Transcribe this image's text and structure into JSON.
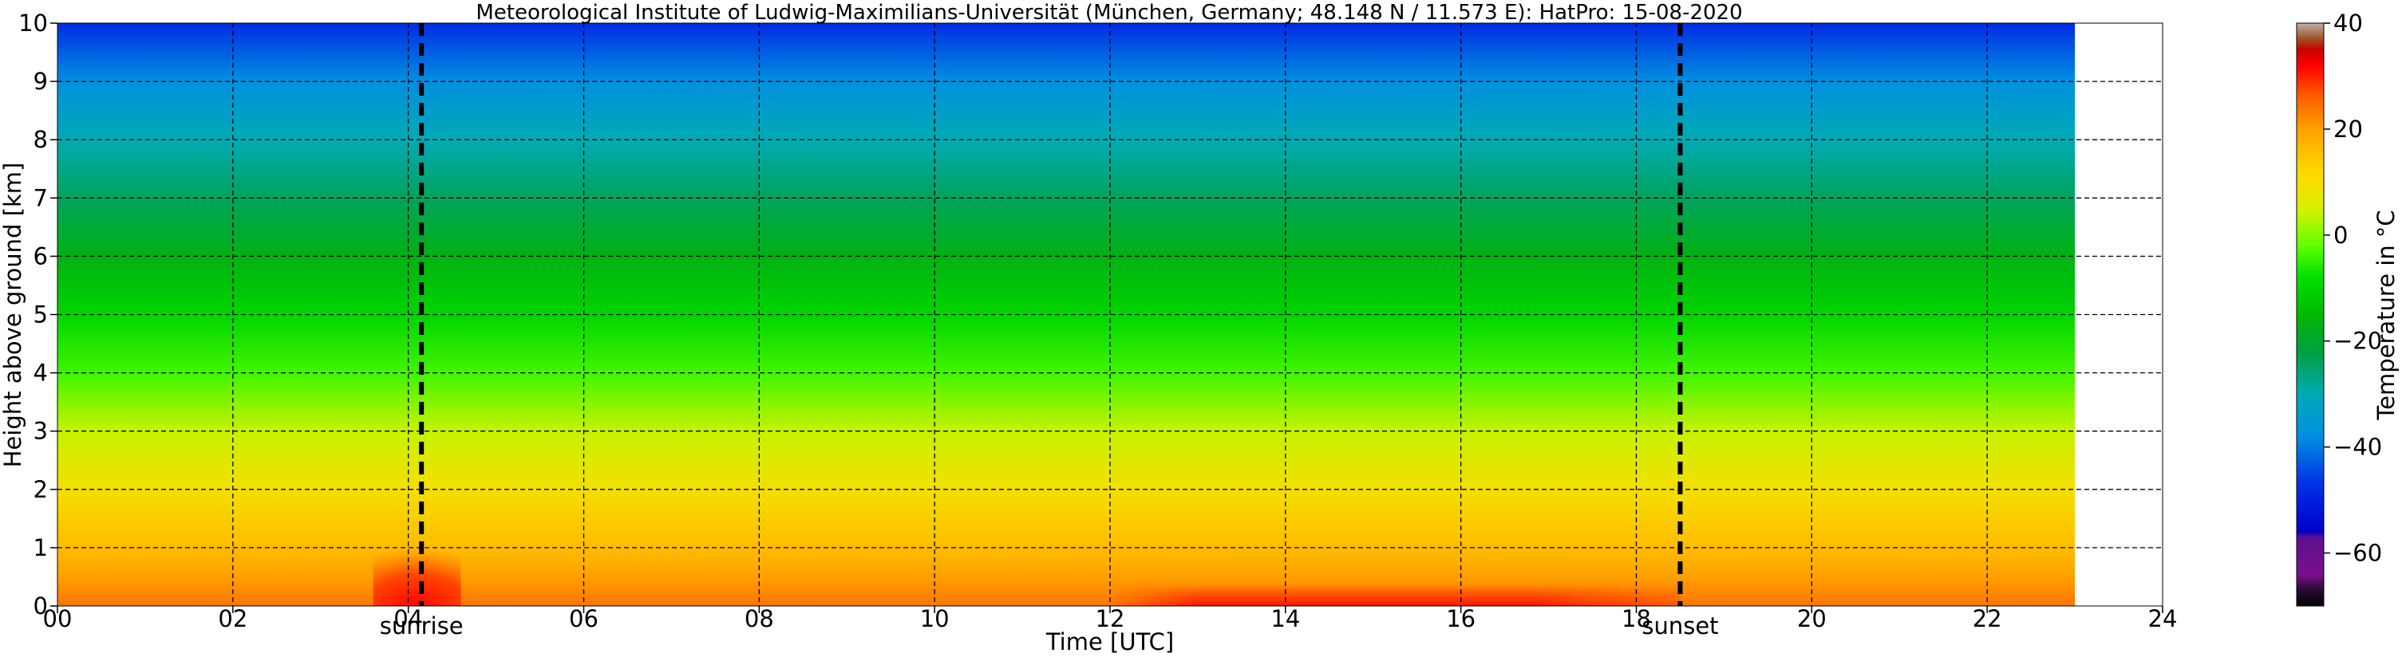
{
  "chart_data": {
    "type": "heatmap",
    "title": "Meteorological Institute of Ludwig-Maximilians-Universität (München, Germany; 48.148 N / 11.573 E):    HatPro: 15-08-2020",
    "xlabel": "Time [UTC]",
    "ylabel": "Height above ground [km]",
    "xlim": [
      0,
      24
    ],
    "ylim": [
      0,
      10
    ],
    "x_ticks": [
      0,
      2,
      4,
      6,
      8,
      10,
      12,
      14,
      16,
      18,
      20,
      22,
      24
    ],
    "x_tick_labels": [
      "00",
      "02",
      "04",
      "06",
      "08",
      "10",
      "12",
      "14",
      "16",
      "18",
      "20",
      "22",
      "24"
    ],
    "y_ticks": [
      0,
      1,
      2,
      3,
      4,
      5,
      6,
      7,
      8,
      9,
      10
    ],
    "y_tick_labels": [
      "0",
      "1",
      "2",
      "3",
      "4",
      "5",
      "6",
      "7",
      "8",
      "9",
      "10"
    ],
    "grid": true,
    "data_time_range": [
      0,
      23
    ],
    "events": [
      {
        "label": "sunrise",
        "time": 4.15
      },
      {
        "label": "sunset",
        "time": 18.5
      }
    ],
    "temperature_profile_typical": [
      {
        "height_km": 0.0,
        "temp_c": 24
      },
      {
        "height_km": 0.5,
        "temp_c": 20
      },
      {
        "height_km": 1.0,
        "temp_c": 16
      },
      {
        "height_km": 2.0,
        "temp_c": 10
      },
      {
        "height_km": 3.0,
        "temp_c": 4
      },
      {
        "height_km": 4.0,
        "temp_c": -4
      },
      {
        "height_km": 5.0,
        "temp_c": -10
      },
      {
        "height_km": 6.0,
        "temp_c": -17
      },
      {
        "height_km": 7.0,
        "temp_c": -24
      },
      {
        "height_km": 8.0,
        "temp_c": -30
      },
      {
        "height_km": 9.0,
        "temp_c": -38
      },
      {
        "height_km": 10.0,
        "temp_c": -48
      }
    ],
    "near_surface_warm_periods": [
      {
        "time_start": 3.6,
        "time_end": 4.6,
        "height_top_km": 1.0,
        "max_temp_c": 30
      },
      {
        "time_start": 12.0,
        "time_end": 18.5,
        "height_top_km": 0.4,
        "max_temp_c": 29
      }
    ],
    "colorbar": {
      "label": "Temperature in $^\\circ$C",
      "range": [
        -70,
        40
      ],
      "ticks": [
        40,
        20,
        0,
        -20,
        -40,
        -60
      ],
      "tick_labels": [
        "40",
        "20",
        "0",
        "−20",
        "−40",
        "−60"
      ],
      "colors": [
        {
          "t": -70,
          "color": "#000000"
        },
        {
          "t": -67,
          "color": "#2a0a30"
        },
        {
          "t": -64,
          "color": "#7b0f8c"
        },
        {
          "t": -57,
          "color": "#5a1090"
        },
        {
          "t": -56,
          "color": "#0000c8"
        },
        {
          "t": -47,
          "color": "#0030e8"
        },
        {
          "t": -38,
          "color": "#0090e0"
        },
        {
          "t": -30,
          "color": "#00aab4"
        },
        {
          "t": -22,
          "color": "#00a040"
        },
        {
          "t": -15,
          "color": "#00b800"
        },
        {
          "t": -8,
          "color": "#00e000"
        },
        {
          "t": -2,
          "color": "#60ff00"
        },
        {
          "t": 5,
          "color": "#d8f000"
        },
        {
          "t": 12,
          "color": "#ffd800"
        },
        {
          "t": 20,
          "color": "#ffa000"
        },
        {
          "t": 26,
          "color": "#ff6000"
        },
        {
          "t": 32,
          "color": "#ff0000"
        },
        {
          "t": 35,
          "color": "#c80000"
        },
        {
          "t": 37,
          "color": "#a05020"
        },
        {
          "t": 40,
          "color": "#c0b0b0"
        }
      ]
    }
  }
}
